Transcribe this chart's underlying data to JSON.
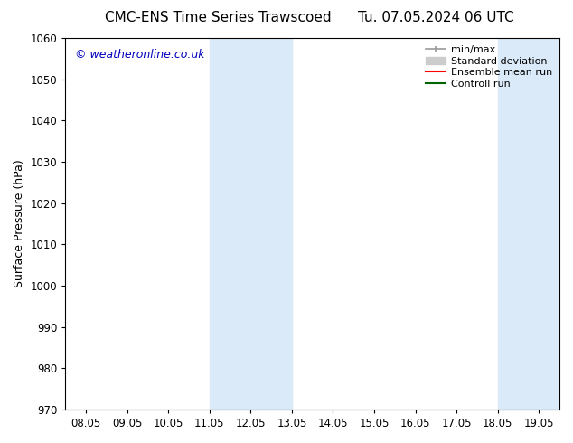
{
  "title_left": "CMC-ENS Time Series Trawscoed",
  "title_right": "Tu. 07.05.2024 06 UTC",
  "ylabel": "Surface Pressure (hPa)",
  "ylim": [
    970,
    1060
  ],
  "yticks": [
    970,
    980,
    990,
    1000,
    1010,
    1020,
    1030,
    1040,
    1050,
    1060
  ],
  "x_labels": [
    "08.05",
    "09.05",
    "10.05",
    "11.05",
    "12.05",
    "13.05",
    "14.05",
    "15.05",
    "16.05",
    "17.05",
    "18.05",
    "19.05"
  ],
  "x_values": [
    0,
    1,
    2,
    3,
    4,
    5,
    6,
    7,
    8,
    9,
    10,
    11
  ],
  "xlim": [
    -0.5,
    11.5
  ],
  "shaded_bands": [
    {
      "x_start": 3.0,
      "x_end": 5.0,
      "color": "#daeaf8"
    },
    {
      "x_start": 10.0,
      "x_end": 11.5,
      "color": "#daeaf8"
    }
  ],
  "watermark": "© weatheronline.co.uk",
  "watermark_color": "#0000bb",
  "background_color": "#ffffff",
  "axes_background": "#ffffff",
  "legend_items": [
    {
      "label": "min/max",
      "color": "#999999",
      "lw": 1.2,
      "style": "solid",
      "type": "line_with_caps"
    },
    {
      "label": "Standard deviation",
      "color": "#cccccc",
      "lw": 8,
      "style": "solid",
      "type": "thick_line"
    },
    {
      "label": "Ensemble mean run",
      "color": "#ff0000",
      "lw": 1.5,
      "style": "solid",
      "type": "line"
    },
    {
      "label": "Controll run",
      "color": "#006400",
      "lw": 1.5,
      "style": "solid",
      "type": "line"
    }
  ],
  "title_fontsize": 11,
  "tick_fontsize": 8.5,
  "ylabel_fontsize": 9,
  "legend_fontsize": 8,
  "watermark_fontsize": 9
}
